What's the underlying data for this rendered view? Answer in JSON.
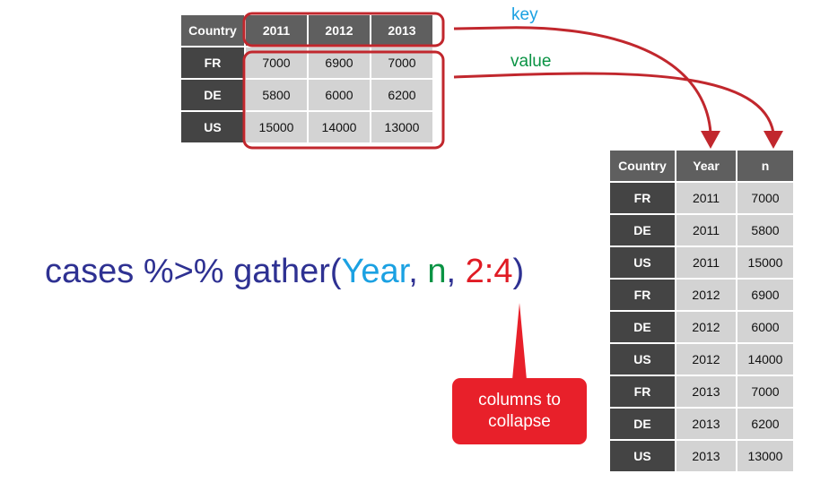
{
  "wide_table": {
    "headers": [
      "Country",
      "2011",
      "2012",
      "2013"
    ],
    "rows": [
      [
        "FR",
        "7000",
        "6900",
        "7000"
      ],
      [
        "DE",
        "5800",
        "6000",
        "6200"
      ],
      [
        "US",
        "15000",
        "14000",
        "13000"
      ]
    ]
  },
  "long_table": {
    "headers": [
      "Country",
      "Year",
      "n"
    ],
    "rows": [
      [
        "FR",
        "2011",
        "7000"
      ],
      [
        "DE",
        "2011",
        "5800"
      ],
      [
        "US",
        "2011",
        "15000"
      ],
      [
        "FR",
        "2012",
        "6900"
      ],
      [
        "DE",
        "2012",
        "6000"
      ],
      [
        "US",
        "2012",
        "14000"
      ],
      [
        "FR",
        "2013",
        "7000"
      ],
      [
        "DE",
        "2013",
        "6200"
      ],
      [
        "US",
        "2013",
        "13000"
      ]
    ]
  },
  "code": {
    "prefix": "cases %>% gather(",
    "key": "Year",
    "sep1": ", ",
    "value": "n",
    "sep2": ", ",
    "cols": "2:4",
    "suffix": ")"
  },
  "labels": {
    "key": "key",
    "value": "value"
  },
  "callout": {
    "line1": "columns to",
    "line2": "collapse"
  },
  "colors": {
    "key": "#1ba1e2",
    "value": "#0a9344",
    "accent": "#e01b24",
    "outline": "#c1272d",
    "code": "#2e3192",
    "header": "#5f5f5f",
    "cell": "#d3d3d3"
  }
}
